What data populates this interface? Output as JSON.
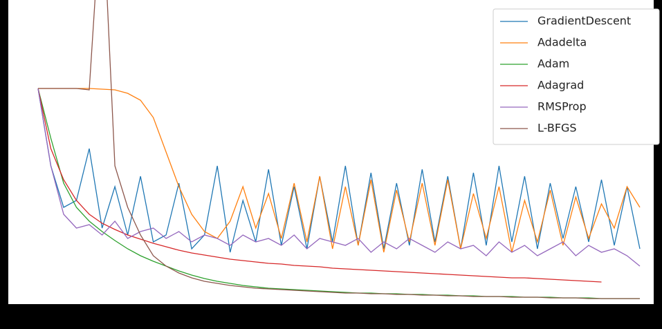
{
  "chart_data": {
    "type": "line",
    "x": [
      0,
      1,
      2,
      3,
      4,
      5,
      6,
      7,
      8,
      9,
      10,
      11,
      12,
      13,
      14,
      15,
      16,
      17,
      18,
      19,
      20,
      21,
      22,
      23,
      24,
      25,
      26,
      27,
      28,
      29,
      30,
      31,
      32,
      33,
      34,
      35,
      36,
      37,
      38,
      39,
      40,
      41,
      42,
      43,
      44,
      45,
      46,
      47
    ],
    "xlim": [
      0,
      47
    ],
    "ylim": [
      0,
      435
    ],
    "legend": "upper right",
    "series": [
      {
        "name": "GradientDescent",
        "color": "#1f77b4",
        "values": [
          312,
          200,
          140,
          150,
          225,
          110,
          170,
          100,
          185,
          90,
          100,
          175,
          80,
          100,
          200,
          75,
          150,
          90,
          195,
          85,
          170,
          80,
          185,
          90,
          200,
          85,
          190,
          80,
          175,
          85,
          195,
          90,
          185,
          80,
          190,
          85,
          200,
          90,
          185,
          80,
          175,
          95,
          170,
          90,
          180,
          85,
          170,
          80
        ]
      },
      {
        "name": "Adadelta",
        "color": "#ff7f0e",
        "values": [
          312,
          312,
          312,
          312,
          312,
          311,
          310,
          305,
          295,
          270,
          220,
          170,
          130,
          105,
          95,
          120,
          170,
          110,
          160,
          95,
          175,
          90,
          185,
          80,
          170,
          85,
          180,
          75,
          165,
          90,
          175,
          85,
          180,
          80,
          160,
          95,
          170,
          75,
          150,
          90,
          165,
          85,
          155,
          95,
          145,
          110,
          170,
          140
        ]
      },
      {
        "name": "Adam",
        "color": "#2ca02c",
        "values": [
          312,
          240,
          175,
          140,
          120,
          105,
          92,
          80,
          70,
          62,
          55,
          48,
          42,
          37,
          33,
          30,
          27,
          25,
          23,
          22,
          21,
          20,
          19,
          18,
          17,
          16,
          16,
          15,
          15,
          14,
          14,
          13,
          13,
          12,
          12,
          11,
          11,
          11,
          10,
          10,
          10,
          9,
          9,
          9,
          8,
          8,
          8,
          8
        ]
      },
      {
        "name": "Adagrad",
        "color": "#d62728",
        "values": [
          312,
          225,
          180,
          150,
          130,
          117,
          108,
          100,
          94,
          88,
          83,
          78,
          74,
          71,
          68,
          65,
          63,
          61,
          59,
          58,
          56,
          55,
          54,
          52,
          51,
          50,
          49,
          48,
          47,
          46,
          45,
          44,
          43,
          42,
          41,
          40,
          39,
          38,
          38,
          37,
          36,
          35,
          34,
          33,
          32,
          null,
          null,
          null
        ]
      },
      {
        "name": "RMSProp",
        "color": "#9467bd",
        "values": [
          312,
          200,
          130,
          110,
          115,
          100,
          120,
          95,
          105,
          110,
          95,
          105,
          90,
          100,
          95,
          85,
          100,
          90,
          95,
          85,
          100,
          80,
          95,
          90,
          85,
          95,
          75,
          90,
          80,
          95,
          85,
          75,
          90,
          80,
          85,
          70,
          90,
          75,
          85,
          70,
          80,
          90,
          70,
          85,
          75,
          80,
          70,
          55
        ]
      },
      {
        "name": "L-BFGS",
        "color": "#8c564b",
        "values": [
          312,
          312,
          312,
          312,
          310,
          600,
          200,
          140,
          100,
          70,
          55,
          45,
          38,
          33,
          30,
          27,
          25,
          23,
          22,
          21,
          20,
          19,
          18,
          17,
          16,
          16,
          15,
          15,
          14,
          14,
          13,
          13,
          12,
          12,
          11,
          11,
          11,
          10,
          10,
          10,
          9,
          9,
          9,
          8,
          8,
          8,
          8,
          8
        ]
      }
    ]
  }
}
